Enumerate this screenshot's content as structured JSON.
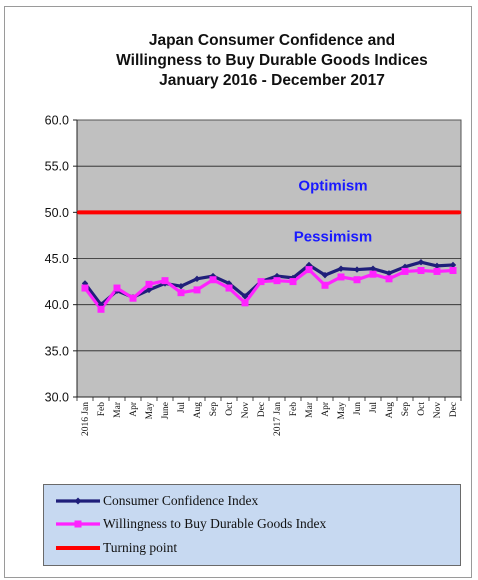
{
  "chart_data": {
    "type": "line",
    "title_lines": [
      "Japan Consumer Confidence and",
      "Willingness to Buy Durable Goods Indices",
      "January 2016 - December   2017"
    ],
    "xlabel": "",
    "ylabel": "",
    "ylim": [
      30.0,
      60.0
    ],
    "yticks": [
      "30.0",
      "35.0",
      "40.0",
      "45.0",
      "50.0",
      "55.0",
      "60.0"
    ],
    "categories": [
      "2016 Jan",
      "Feb",
      "Mar",
      "Apr",
      "May",
      "June",
      "Jul",
      "Aug",
      "Sep",
      "Oct",
      "Nov",
      "Dec",
      "2017 Jan",
      "Feb",
      "Mar",
      "Apr",
      "May",
      "Jun",
      "Jul",
      "Aug",
      "Sep",
      "Oct",
      "Nov",
      "Dec"
    ],
    "series": [
      {
        "name": "Consumer Confidence Index",
        "color": "#1f1f7a",
        "values": [
          42.3,
          40.0,
          41.5,
          40.8,
          41.6,
          42.3,
          42.0,
          42.8,
          43.1,
          42.3,
          40.9,
          42.5,
          43.1,
          42.9,
          44.3,
          43.2,
          43.9,
          43.8,
          43.9,
          43.4,
          44.1,
          44.6,
          44.2,
          44.3
        ]
      },
      {
        "name": "Willingness to Buy Durable Goods Index",
        "color": "#ff22ff",
        "values": [
          41.8,
          39.5,
          41.8,
          40.7,
          42.2,
          42.6,
          41.3,
          41.6,
          42.7,
          41.8,
          40.2,
          42.5,
          42.6,
          42.5,
          43.8,
          42.1,
          43.0,
          42.7,
          43.3,
          42.8,
          43.6,
          43.7,
          43.6,
          43.7
        ]
      },
      {
        "name": "Turning point",
        "color": "#ff0000",
        "values": [
          50.0,
          50.0,
          50.0,
          50.0,
          50.0,
          50.0,
          50.0,
          50.0,
          50.0,
          50.0,
          50.0,
          50.0,
          50.0,
          50.0,
          50.0,
          50.0,
          50.0,
          50.0,
          50.0,
          50.0,
          50.0,
          50.0,
          50.0,
          50.0
        ]
      }
    ],
    "annotations": [
      {
        "text": "Optimism",
        "y": 52.9
      },
      {
        "text": "Pessimism",
        "y": 47.4
      }
    ],
    "grid": true,
    "plot_background": "#c0c0c0",
    "legend_position": "bottom"
  }
}
